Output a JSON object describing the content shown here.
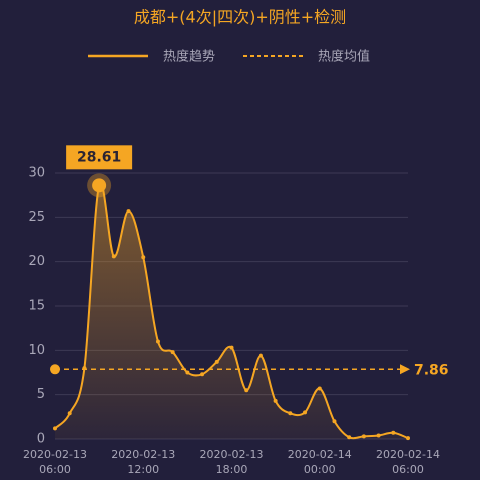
{
  "chart_data": {
    "type": "line",
    "title": "成都+(4次|四次)+阴性+检测",
    "categories": [
      "2020-02-13 06:00",
      null,
      null,
      null,
      null,
      null,
      "2020-02-13 12:00",
      null,
      null,
      null,
      null,
      null,
      "2020-02-13 18:00",
      null,
      null,
      null,
      null,
      null,
      "2020-02-14 00:00",
      null,
      null,
      null,
      null,
      null,
      "2020-02-14 06:00"
    ],
    "series": [
      {
        "name": "热度趋势",
        "color": "#f5a623",
        "values": [
          1.2,
          2.9,
          8,
          28.61,
          20.6,
          25.7,
          20.5,
          11,
          9.8,
          7.5,
          7.3,
          8.7,
          10.3,
          5.5,
          9.4,
          4.3,
          2.9,
          3.0,
          5.7,
          2.0,
          0.2,
          0.3,
          0.4,
          0.7,
          0.1
        ]
      }
    ],
    "mean_line": {
      "name": "热度均值",
      "value": 7.86,
      "color": "#f5a623"
    },
    "ylim": [
      0,
      30
    ],
    "yticks": [
      0,
      5,
      10,
      15,
      20,
      25,
      30
    ],
    "grid": true
  }
}
